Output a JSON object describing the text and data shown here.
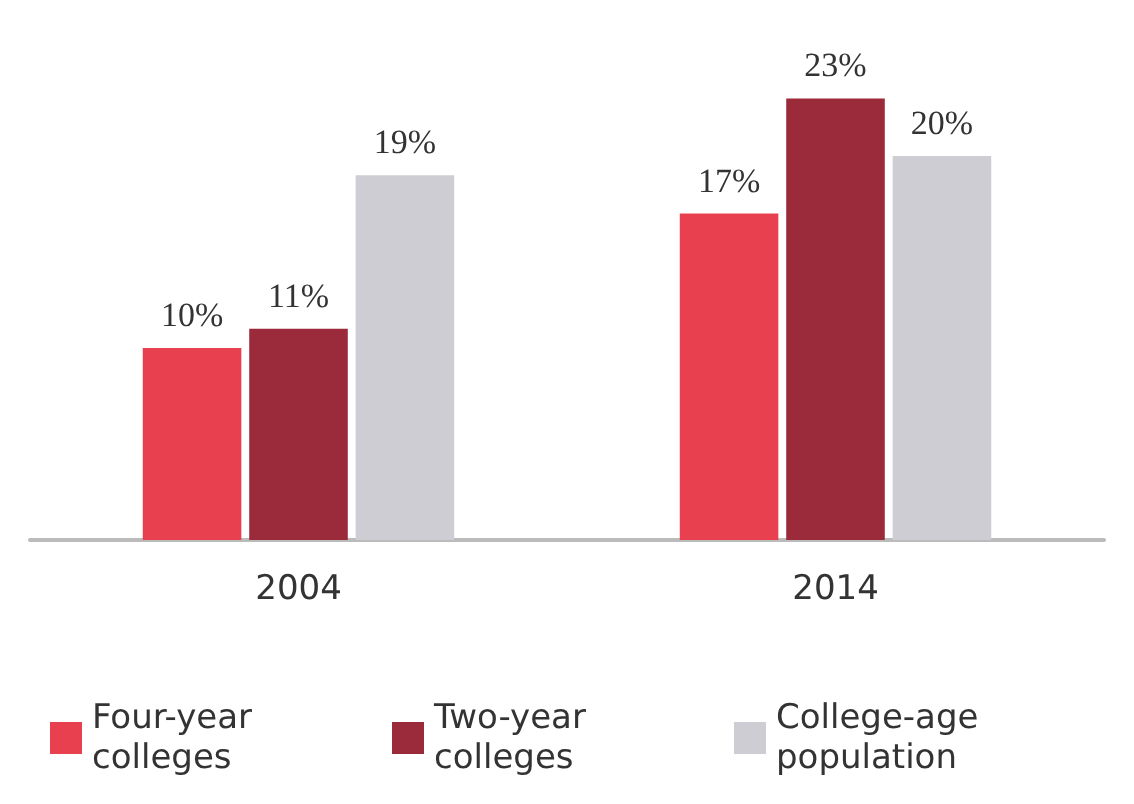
{
  "chart_data": {
    "type": "bar",
    "categories": [
      "2004",
      "2014"
    ],
    "series": [
      {
        "name": "Four-year colleges",
        "color": "#e8404f",
        "values": [
          10,
          17
        ],
        "value_labels": [
          "10%",
          "17%"
        ]
      },
      {
        "name": "Two-year colleges",
        "color": "#9b2a3a",
        "values": [
          11,
          23
        ],
        "value_labels": [
          "11%",
          "23%"
        ]
      },
      {
        "name": "College-age population",
        "color": "#cdcdd3",
        "values": [
          19,
          20
        ],
        "value_labels": [
          "19%",
          "20%"
        ]
      }
    ],
    "legend": "bottom"
  }
}
